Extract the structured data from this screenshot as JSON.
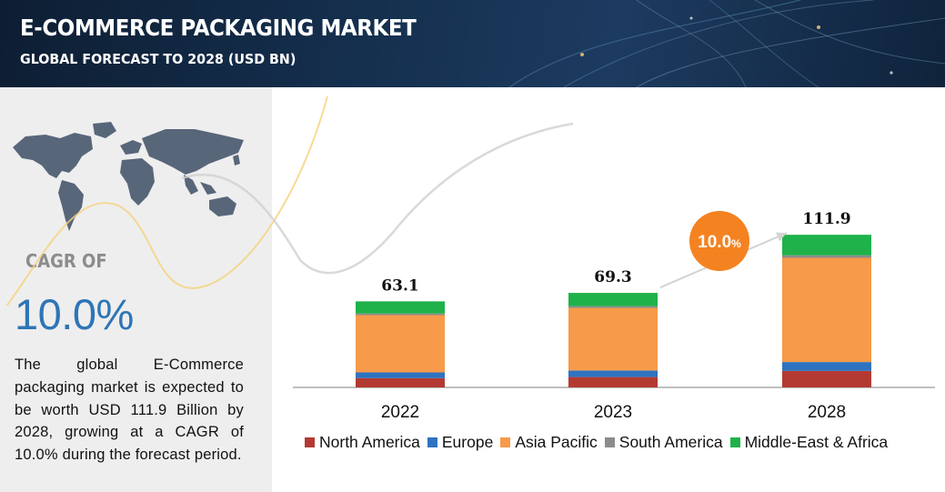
{
  "header": {
    "title": "E-COMMERCE PACKAGING MARKET",
    "subtitle": "GLOBAL FORECAST TO 2028 (USD BN)"
  },
  "sidebar": {
    "cagr_label": "CAGR OF",
    "cagr_value": "10.0%",
    "description": "The global E-Commerce packaging market is expected to be worth USD 111.9 Billion by 2028, growing at a CAGR of 10.0% during the forecast period."
  },
  "colors": {
    "header_bg": "#15304f",
    "panel_bg": "#eeeeee",
    "accent_blue": "#2e75b6",
    "cagr_bubble": "#f58220"
  },
  "icons": [
    "world-map-icon",
    "cagr-arrow-icon"
  ],
  "chart_data": {
    "type": "bar",
    "stacked": true,
    "categories": [
      "2022",
      "2023",
      "2028"
    ],
    "totals": [
      "63.1",
      "69.3",
      "111.9"
    ],
    "series": [
      {
        "name": "North America",
        "color": "#b33a32",
        "values": [
          6.8,
          7.6,
          12.1
        ]
      },
      {
        "name": "Europe",
        "color": "#2f73c0",
        "values": [
          4.2,
          4.8,
          6.5
        ]
      },
      {
        "name": "Asia Pacific",
        "color": "#f79a4a",
        "values": [
          42.0,
          45.9,
          76.4
        ]
      },
      {
        "name": "South America",
        "color": "#8c8c8c",
        "values": [
          1.2,
          1.3,
          1.9
        ]
      },
      {
        "name": "Middle-East & Africa",
        "color": "#1fb24a",
        "values": [
          8.9,
          9.7,
          15.0
        ]
      }
    ],
    "annotation": {
      "label": "10.0",
      "suffix": "%"
    },
    "legend_position": "bottom",
    "grid": false
  }
}
